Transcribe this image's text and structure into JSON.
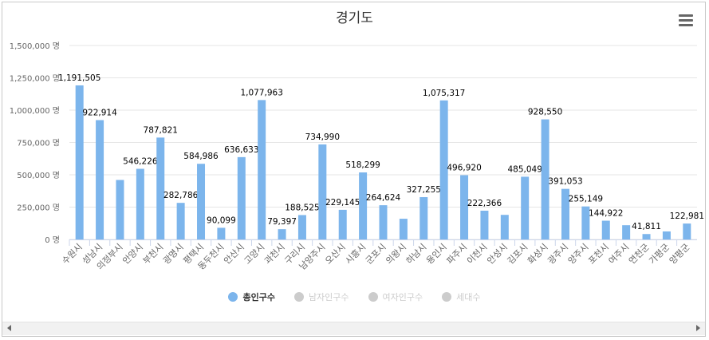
{
  "chart_data": {
    "type": "bar",
    "title": "경기도",
    "unit": "명",
    "ylim": [
      0,
      1500000
    ],
    "yticks": [
      "0 명",
      "250,000 명",
      "500,000 명",
      "750,000 명",
      "1,000,000 명",
      "1,250,000 명",
      "1,500,000 명"
    ],
    "ytick_values": [
      0,
      250000,
      500000,
      750000,
      1000000,
      1250000,
      1500000
    ],
    "categories": [
      "수원시",
      "성남시",
      "의정부시",
      "안양시",
      "부천시",
      "광명시",
      "평택시",
      "동두천시",
      "안산시",
      "고양시",
      "과천시",
      "구리시",
      "남양주시",
      "오산시",
      "시흥시",
      "군포시",
      "의왕시",
      "하남시",
      "용인시",
      "파주시",
      "이천시",
      "안성시",
      "김포시",
      "화성시",
      "광주시",
      "양주시",
      "포천시",
      "여주시",
      "연천군",
      "가평군",
      "양평군"
    ],
    "values": [
      1191505,
      922914,
      460000,
      546226,
      787821,
      282786,
      584986,
      90099,
      636633,
      1077963,
      79397,
      188525,
      734990,
      229145,
      518299,
      264624,
      160000,
      327255,
      1075317,
      496920,
      222366,
      190000,
      485049,
      928550,
      391053,
      255149,
      144922,
      110000,
      41811,
      62000,
      122981
    ],
    "data_labels": [
      "1,191,505",
      "922,914",
      "",
      "546,226",
      "787,821",
      "282,786",
      "584,986",
      "90,099",
      "636,633",
      "1,077,963",
      "79,397",
      "188,525",
      "734,990",
      "229,145",
      "518,299",
      "264,624",
      "",
      "327,255",
      "1,075,317",
      "496,920",
      "222,366",
      "",
      "485,049",
      "928,550",
      "391,053",
      "255,149",
      "144,922",
      "",
      "41,811",
      "",
      "122,981"
    ],
    "series_color": "#7cb5ec",
    "legend": [
      {
        "label": "총인구수",
        "color": "#7cb5ec",
        "active": true
      },
      {
        "label": "남자인구수",
        "color": "#cccccc",
        "active": false
      },
      {
        "label": "여자인구수",
        "color": "#cccccc",
        "active": false
      },
      {
        "label": "세대수",
        "color": "#cccccc",
        "active": false
      }
    ]
  },
  "ui": {
    "menu_icon": "hamburger-menu-icon",
    "scroll_left_icon": "arrow-left-icon",
    "scroll_right_icon": "arrow-right-icon"
  }
}
